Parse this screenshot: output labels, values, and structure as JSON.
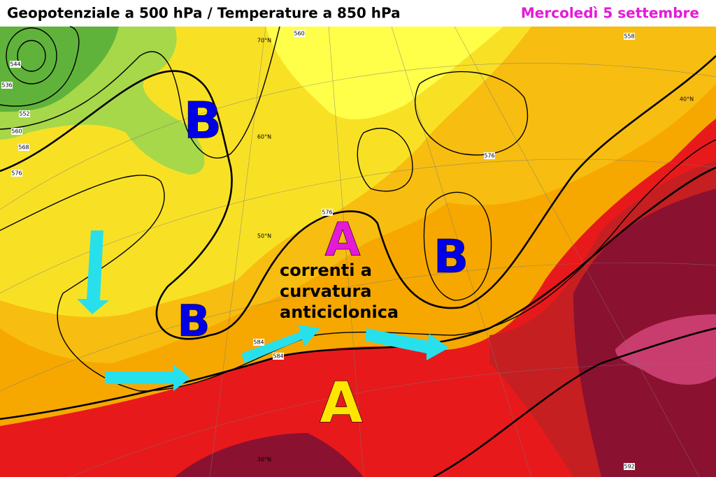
{
  "header": {
    "title": "Geopotenziale a 500 hPa / Temperature a 850 hPa",
    "date": "Mercoledì 5 settembre"
  },
  "map": {
    "pressure_labels": [
      "B",
      "A",
      "B",
      "B",
      "A"
    ],
    "annotation": [
      "correnti a",
      "curvatura",
      "anticiclonica"
    ],
    "contour_labels": [
      "536",
      "544",
      "552",
      "560",
      "568",
      "576",
      "576",
      "576",
      "584",
      "584",
      "592",
      "558",
      "560"
    ],
    "lat_labels": [
      "70°N",
      "60°N",
      "50°N",
      "40°N",
      "30°N"
    ]
  }
}
